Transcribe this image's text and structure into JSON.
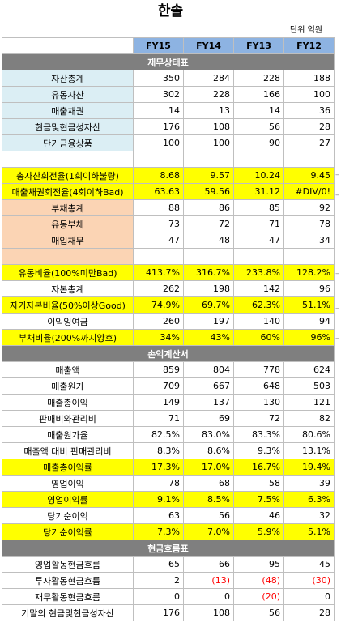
{
  "page": {
    "title": "한솔",
    "unit_label": "단위 억원"
  },
  "columns": [
    "FY15",
    "FY14",
    "FY13",
    "FY12"
  ],
  "sections": {
    "balance": "재무상태표",
    "income": "손익계산서",
    "cashflow": "현금흐름표"
  },
  "balance_rows": [
    {
      "label": "자산총계",
      "values": [
        "350",
        "284",
        "228",
        "188"
      ]
    },
    {
      "label": "유동자산",
      "values": [
        "302",
        "228",
        "166",
        "100"
      ]
    },
    {
      "label": "매출채권",
      "values": [
        "14",
        "13",
        "14",
        "36"
      ]
    },
    {
      "label": "현금및현금성자산",
      "values": [
        "176",
        "108",
        "56",
        "28"
      ]
    },
    {
      "label": "단기금융상품",
      "values": [
        "100",
        "100",
        "90",
        "27"
      ]
    }
  ],
  "turnover_rows": [
    {
      "label": "총자산회전율(1회이하불량)",
      "values": [
        "8.68",
        "9.57",
        "10.24",
        "9.45"
      ]
    },
    {
      "label": "매출채권회전율(4회이하Bad)",
      "values": [
        "63.63",
        "59.56",
        "31.12",
        "#DIV/0!"
      ]
    }
  ],
  "liability_rows": [
    {
      "label": "부채총계",
      "values": [
        "88",
        "86",
        "85",
        "92"
      ]
    },
    {
      "label": "유동부채",
      "values": [
        "73",
        "72",
        "71",
        "78"
      ]
    },
    {
      "label": "매입채무",
      "values": [
        "47",
        "48",
        "47",
        "34"
      ]
    }
  ],
  "ratio_rows": [
    {
      "label": "유동비율(100%미만Bad)",
      "values": [
        "413.7%",
        "316.7%",
        "233.8%",
        "128.2%"
      ],
      "yellow": true
    },
    {
      "label": "자본총계",
      "values": [
        "262",
        "198",
        "142",
        "96"
      ],
      "yellow": false
    },
    {
      "label": "자기자본비율(50%이상Good)",
      "values": [
        "74.9%",
        "69.7%",
        "62.3%",
        "51.1%"
      ],
      "yellow": true
    },
    {
      "label": "이익잉여금",
      "values": [
        "260",
        "197",
        "140",
        "94"
      ],
      "yellow": false
    },
    {
      "label": "부채비율(200%까지양호)",
      "values": [
        "34%",
        "43%",
        "60%",
        "96%"
      ],
      "yellow": true
    }
  ],
  "income_rows": [
    {
      "label": "매출액",
      "values": [
        "859",
        "804",
        "778",
        "624"
      ],
      "yellow": false
    },
    {
      "label": "매출원가",
      "values": [
        "709",
        "667",
        "648",
        "503"
      ],
      "yellow": false
    },
    {
      "label": "매출총이익",
      "values": [
        "149",
        "137",
        "130",
        "121"
      ],
      "yellow": false
    },
    {
      "label": "판매비와관리비",
      "values": [
        "71",
        "69",
        "72",
        "82"
      ],
      "yellow": false
    },
    {
      "label": "매출원가율",
      "values": [
        "82.5%",
        "83.0%",
        "83.3%",
        "80.6%"
      ],
      "yellow": false
    },
    {
      "label": "매출액 대비 판매관리비",
      "values": [
        "8.3%",
        "8.6%",
        "9.3%",
        "13.1%"
      ],
      "yellow": false
    },
    {
      "label": "매출총이익률",
      "values": [
        "17.3%",
        "17.0%",
        "16.7%",
        "19.4%"
      ],
      "yellow": true
    },
    {
      "label": "영업이익",
      "values": [
        "78",
        "68",
        "58",
        "39"
      ],
      "yellow": false
    },
    {
      "label": "영업이익률",
      "values": [
        "9.1%",
        "8.5%",
        "7.5%",
        "6.3%"
      ],
      "yellow": true
    },
    {
      "label": "당기순이익",
      "values": [
        "63",
        "56",
        "46",
        "32"
      ],
      "yellow": false
    },
    {
      "label": "당기순이익률",
      "values": [
        "7.3%",
        "7.0%",
        "5.9%",
        "5.1%"
      ],
      "yellow": true
    }
  ],
  "cashflow_rows": [
    {
      "label": "영업활동현금흐름",
      "values": [
        "65",
        "66",
        "95",
        "45"
      ],
      "negative": [
        false,
        false,
        false,
        false
      ]
    },
    {
      "label": "투자활동현금흐름",
      "values": [
        "2",
        "(13)",
        "(48)",
        "(30)"
      ],
      "negative": [
        false,
        true,
        true,
        true
      ]
    },
    {
      "label": "재무활동현금흐름",
      "values": [
        "0",
        "0",
        "(20)",
        "0"
      ],
      "negative": [
        false,
        false,
        true,
        false
      ]
    },
    {
      "label": "기말의 현금및현금성자산",
      "values": [
        "176",
        "108",
        "56",
        "28"
      ],
      "negative": [
        false,
        false,
        false,
        false
      ]
    }
  ],
  "colors": {
    "header_blue": "#8db3e2",
    "section_gray": "#7f7f7f",
    "label_lightblue": "#dbeef4",
    "label_peach": "#fbd4b4",
    "highlight_yellow": "#ffff00",
    "negative_red": "#ff0000"
  }
}
